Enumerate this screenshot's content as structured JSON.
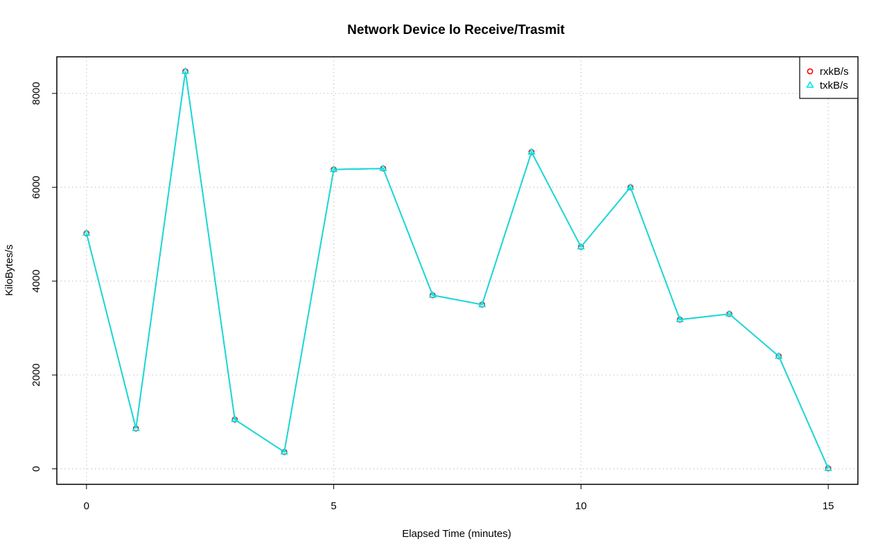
{
  "chart_data": {
    "type": "line",
    "title": "Network Device lo Receive/Trasmit",
    "xlabel": "Elapsed Time (minutes)",
    "ylabel": "KiloBytes/s",
    "xlim": [
      -0.6,
      15.6
    ],
    "ylim": [
      -330,
      8780
    ],
    "x_ticks": [
      0,
      5,
      10,
      15
    ],
    "y_ticks": [
      0,
      2000,
      4000,
      6000,
      8000
    ],
    "grid": true,
    "legend_position": "top-right",
    "x": [
      0,
      1,
      2,
      3,
      4,
      5,
      6,
      7,
      8,
      9,
      10,
      11,
      12,
      13,
      14,
      15
    ],
    "series": [
      {
        "name": "rxkB/s",
        "color": "#ff0000",
        "marker": "circle",
        "values": [
          5020,
          860,
          8470,
          1050,
          360,
          6380,
          6400,
          3700,
          3500,
          6750,
          4730,
          6000,
          3180,
          3300,
          2400,
          10
        ]
      },
      {
        "name": "txkB/s",
        "color": "#00e5e5",
        "marker": "triangle",
        "values": [
          5020,
          860,
          8470,
          1050,
          360,
          6380,
          6400,
          3700,
          3500,
          6750,
          4730,
          6000,
          3180,
          3300,
          2400,
          10
        ]
      }
    ]
  }
}
